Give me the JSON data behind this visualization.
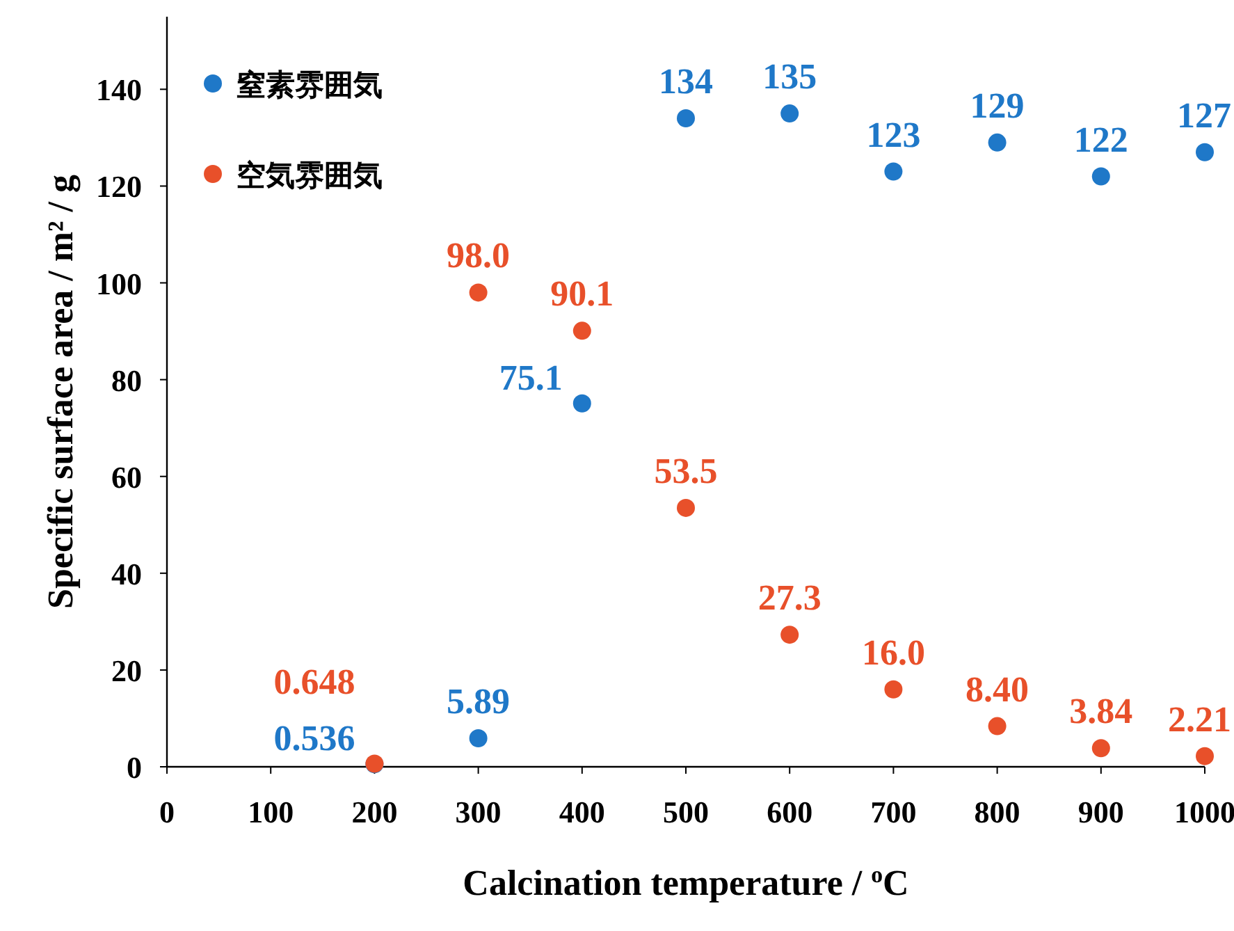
{
  "chart_data": {
    "type": "scatter",
    "xlabel": "Calcination temperature / $^{o}$C",
    "ylabel": "Specific surface area / m² / g",
    "x": [
      200,
      300,
      400,
      500,
      600,
      700,
      800,
      900,
      1000
    ],
    "xlim": [
      0,
      1000
    ],
    "xticks": [
      0,
      100,
      200,
      300,
      400,
      500,
      600,
      700,
      800,
      900,
      1000
    ],
    "ylim": [
      0,
      155
    ],
    "yticks": [
      0,
      20,
      40,
      60,
      80,
      100,
      120,
      140
    ],
    "legend": "top left",
    "grid": false,
    "marker": "circle",
    "series": [
      {
        "name": "窒素雰囲気",
        "color": "#1f78c8",
        "values": [
          0.536,
          5.89,
          75.1,
          134,
          135,
          123,
          129,
          122,
          127
        ],
        "value_labels": [
          "0.536",
          "5.89",
          "75.1",
          "134",
          "135",
          "123",
          "129",
          "122",
          "127"
        ]
      },
      {
        "name": "空気雰囲気",
        "color": "#e8502a",
        "values": [
          0.648,
          98.0,
          90.1,
          53.5,
          27.3,
          16.0,
          8.4,
          3.84,
          2.21
        ],
        "value_labels": [
          "0.648",
          "98.0",
          "90.1",
          "53.5",
          "27.3",
          "16.0",
          "8.40",
          "3.84",
          "2.21"
        ]
      }
    ]
  }
}
